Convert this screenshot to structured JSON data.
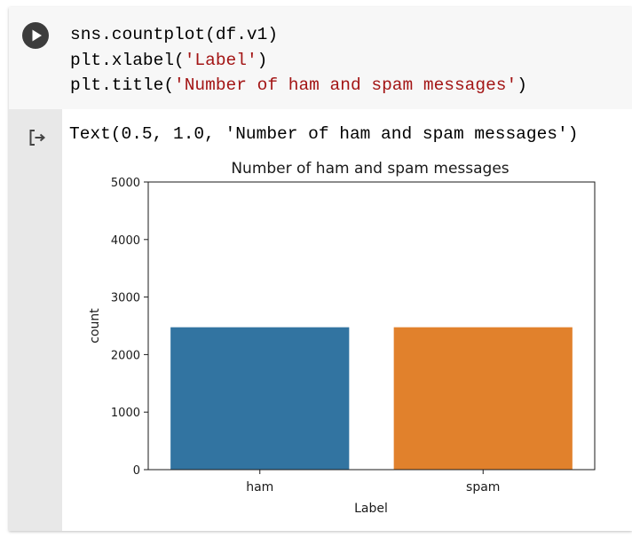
{
  "cell": {
    "code_lines": [
      {
        "prefix": "sns.countplot(df.v1)",
        "string": "",
        "suffix": ""
      },
      {
        "prefix": "plt.xlabel(",
        "string": "'Label'",
        "suffix": ")"
      },
      {
        "prefix": "plt.title(",
        "string": "'Number of ham and spam messages'",
        "suffix": ")"
      }
    ],
    "output_text": "Text(0.5, 1.0, 'Number of ham and spam messages')"
  },
  "colors": {
    "string_literal": "#a31515",
    "run_button": "#3c3c3c",
    "gutter": "#e8e8e8"
  },
  "icons": {
    "run": "play-circle-icon",
    "output": "output-arrow-icon"
  },
  "chart_data": {
    "type": "bar",
    "title": "Number of ham and spam messages",
    "xlabel": "Label",
    "ylabel": "count",
    "categories": [
      "ham",
      "spam"
    ],
    "values": [
      2475,
      2475
    ],
    "colors": [
      "#3274a1",
      "#e1812c"
    ],
    "ylim": [
      0,
      5000
    ],
    "yticks": [
      0,
      1000,
      2000,
      3000,
      4000,
      5000
    ],
    "grid": false,
    "legend": "none"
  }
}
